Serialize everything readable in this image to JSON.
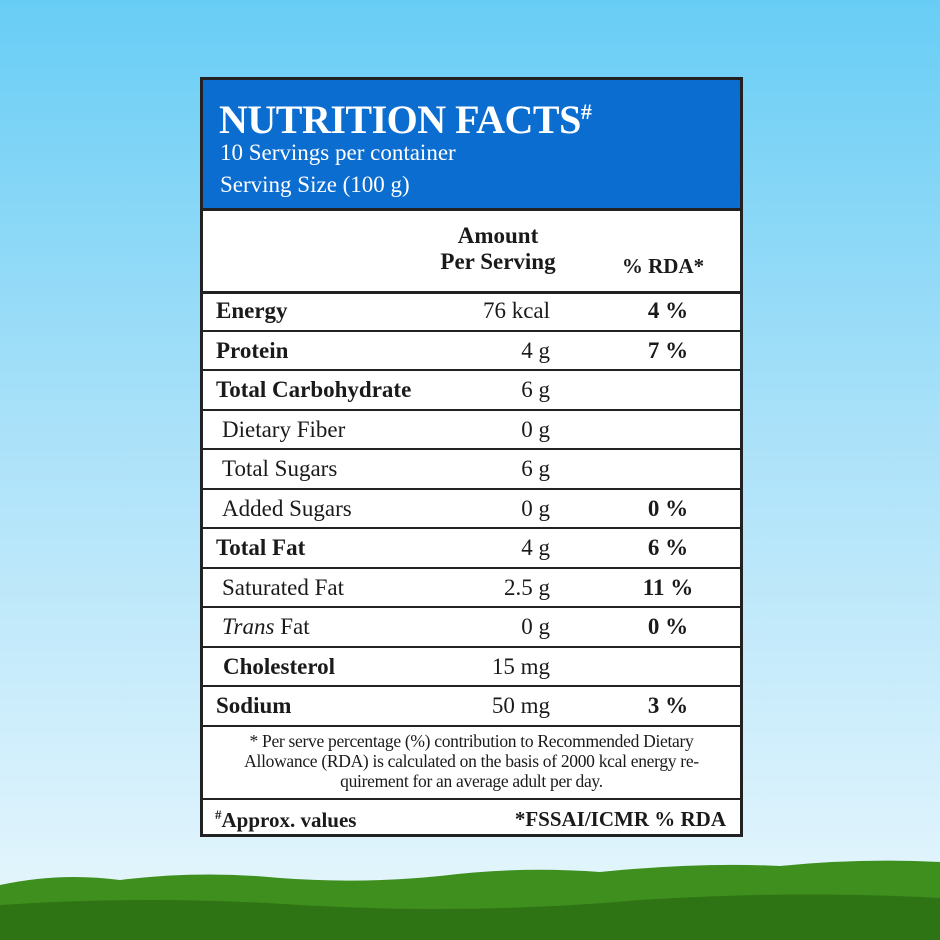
{
  "header": {
    "title": "NUTRITION FACTS",
    "title_mark": "#",
    "servings": "10 Servings per container",
    "serving_size": "Serving Size (100 g)"
  },
  "columns": {
    "amount_line1": "Amount",
    "amount_line2": "Per Serving",
    "rda": "% RDA*"
  },
  "rows": [
    {
      "label": "Energy",
      "amount": "76 kcal",
      "rda": "4 %",
      "bold": true,
      "indent": false
    },
    {
      "label": "Protein",
      "amount": "4 g",
      "rda": "7 %",
      "bold": true,
      "indent": false
    },
    {
      "label": "Total Carbohydrate",
      "amount": "6 g",
      "rda": null,
      "bold": true,
      "indent": false
    },
    {
      "label": "Dietary Fiber",
      "amount": "0 g",
      "rda": null,
      "bold": false,
      "indent": true
    },
    {
      "label": "Total Sugars",
      "amount": "6 g",
      "rda": null,
      "bold": false,
      "indent": true
    },
    {
      "label": "Added Sugars",
      "amount": "0 g",
      "rda": "0 %",
      "bold": false,
      "indent": true
    },
    {
      "label": "Total Fat",
      "amount": "4 g",
      "rda": "6 %",
      "bold": true,
      "indent": false
    },
    {
      "label": "Saturated Fat",
      "amount": "2.5 g",
      "rda": "11 %",
      "bold": false,
      "indent": true
    },
    {
      "label_italic": "Trans",
      "label": "Fat",
      "amount": "0 g",
      "rda": "0 %",
      "bold": false,
      "indent": true
    },
    {
      "label": "Cholesterol",
      "amount": "15 mg",
      "rda": null,
      "bold": true,
      "indent": true
    },
    {
      "label": "Sodium",
      "amount": "50 mg",
      "rda": "3 %",
      "bold": true,
      "indent": false
    }
  ],
  "footnote": [
    "* Per serve percentage (%) contribution to Recommended Dietary",
    "Allowance (RDA) is calculated on the basis of 2000 kcal energy  re-",
    "quirement for an average adult per day."
  ],
  "footer": {
    "approx_mark": "#",
    "approx": "Approx. values",
    "source": "*FSSAI/ICMR % RDA"
  }
}
